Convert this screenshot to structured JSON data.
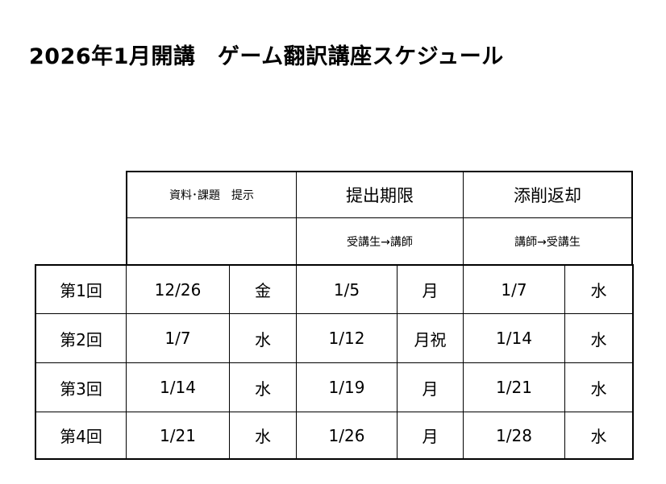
{
  "title": "2026年1月開講　ゲーム翻訳講座スケジュール",
  "header": {
    "col1": "資料･課題　提示",
    "col2": "提出期限",
    "col3": "添削返却",
    "col2_sub": "受講生→講師",
    "col3_sub": "講師→受講生"
  },
  "rows": [
    {
      "label": "第1回",
      "issue_date": "12/26",
      "issue_day": "金",
      "due_date": "1/5",
      "due_day": "月",
      "return_date": "1/7",
      "return_day": "水"
    },
    {
      "label": "第2回",
      "issue_date": "1/7",
      "issue_day": "水",
      "due_date": "1/12",
      "due_day": "月祝",
      "return_date": "1/14",
      "return_day": "水"
    },
    {
      "label": "第3回",
      "issue_date": "1/14",
      "issue_day": "水",
      "due_date": "1/19",
      "due_day": "月",
      "return_date": "1/21",
      "return_day": "水"
    },
    {
      "label": "第4回",
      "issue_date": "1/21",
      "issue_day": "水",
      "due_date": "1/26",
      "due_day": "月",
      "return_date": "1/28",
      "return_day": "水"
    }
  ]
}
